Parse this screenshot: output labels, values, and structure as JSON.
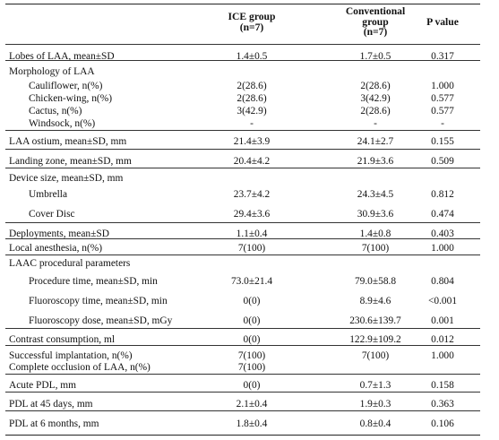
{
  "header": {
    "col1": "",
    "ice_line1": "ICE group",
    "ice_line2": "(n=7)",
    "conv_line1": "Conventional",
    "conv_line2": "group",
    "conv_line3": "(n=7)",
    "pval": "P value"
  },
  "rows": [
    {
      "label": "Lobes of LAA, mean±SD",
      "ice": "1.4±0.5",
      "conv": "1.7±0.5",
      "p": "0.317"
    },
    {
      "label": "Morphology of LAA",
      "ice": "",
      "conv": "",
      "p": ""
    },
    {
      "label": "Cauliflower, n(%)",
      "ice": "2(28.6)",
      "conv": "2(28.6)",
      "p": "1.000"
    },
    {
      "label": "Chicken-wing, n(%)",
      "ice": "2(28.6)",
      "conv": "3(42.9)",
      "p": "0.577"
    },
    {
      "label": "Cactus, n(%)",
      "ice": "3(42.9)",
      "conv": "2(28.6)",
      "p": "0.577"
    },
    {
      "label": "Windsock, n(%)",
      "ice": "-",
      "conv": "-",
      "p": "-"
    },
    {
      "label": "LAA ostium, mean±SD, mm",
      "ice": "21.4±3.9",
      "conv": "24.1±2.7",
      "p": "0.155"
    },
    {
      "label": "Landing zone, mean±SD, mm",
      "ice": "20.4±4.2",
      "conv": "21.9±3.6",
      "p": "0.509"
    },
    {
      "label": "Device size, mean±SD, mm",
      "ice": "",
      "conv": "",
      "p": ""
    },
    {
      "label": "Umbrella",
      "ice": "23.7±4.2",
      "conv": "24.3±4.5",
      "p": "0.812"
    },
    {
      "label": "Cover Disc",
      "ice": "29.4±3.6",
      "conv": "30.9±3.6",
      "p": "0.474"
    },
    {
      "label": "Deployments, mean±SD",
      "ice": "1.1±0.4",
      "conv": "1.4±0.8",
      "p": "0.403"
    },
    {
      "label": "Local anesthesia, n(%)",
      "ice": "7(100)",
      "conv": "7(100)",
      "p": "1.000"
    },
    {
      "label": "LAAC procedural parameters",
      "ice": "",
      "conv": "",
      "p": ""
    },
    {
      "label": "Procedure time, mean±SD, min",
      "ice": "73.0±21.4",
      "conv": "79.0±58.8",
      "p": "0.804"
    },
    {
      "label": "Fluoroscopy time, mean±SD, min",
      "ice": "0(0)",
      "conv": "8.9±4.6",
      "p": "<0.001"
    },
    {
      "label": "Fluoroscopy dose, mean±SD, mGy",
      "ice": "0(0)",
      "conv": "230.6±139.7",
      "p": "0.001"
    },
    {
      "label": "Contrast consumption, ml",
      "ice": "0(0)",
      "conv": "122.9±109.2",
      "p": "0.012"
    },
    {
      "label": "Successful implantation, n(%)",
      "ice": "7(100)",
      "conv": "7(100)",
      "p": "1.000"
    },
    {
      "label": "Complete occlusion of LAA, n(%)",
      "ice": "7(100)",
      "conv": "",
      "p": ""
    },
    {
      "label": "Acute PDL, mm",
      "ice": "0(0)",
      "conv": "0.7±1.3",
      "p": "0.158"
    },
    {
      "label": "PDL at 45 days, mm",
      "ice": "2.1±0.4",
      "conv": "1.9±0.3",
      "p": "0.363"
    },
    {
      "label": "PDL at 6 months, mm",
      "ice": "1.8±0.4",
      "conv": "0.8±0.4",
      "p": "0.106"
    }
  ]
}
